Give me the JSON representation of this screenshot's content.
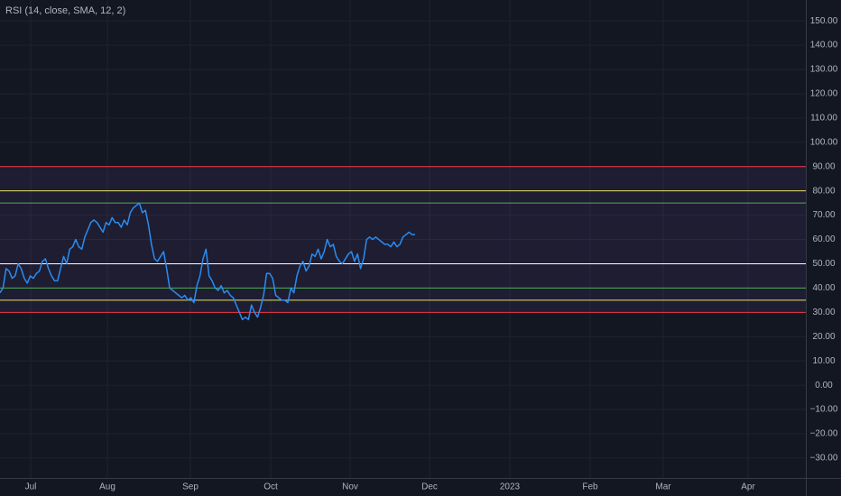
{
  "chart_data": {
    "type": "line",
    "title": "RSI (14, close, SMA, 12, 2)",
    "ylim": [
      -38.2,
      158.6
    ],
    "yticks": [
      {
        "value": 150,
        "label": "150.00"
      },
      {
        "value": 140,
        "label": "140.00"
      },
      {
        "value": 130,
        "label": "130.00"
      },
      {
        "value": 120,
        "label": "120.00"
      },
      {
        "value": 110,
        "label": "110.00"
      },
      {
        "value": 100,
        "label": "100.00"
      },
      {
        "value": 90,
        "label": "90.00"
      },
      {
        "value": 80,
        "label": "80.00"
      },
      {
        "value": 70,
        "label": "70.00"
      },
      {
        "value": 60,
        "label": "60.00"
      },
      {
        "value": 50,
        "label": "50.00"
      },
      {
        "value": 40,
        "label": "40.00"
      },
      {
        "value": 30,
        "label": "30.00"
      },
      {
        "value": 20,
        "label": "20.00"
      },
      {
        "value": 10,
        "label": "10.00"
      },
      {
        "value": 0,
        "label": "0.00"
      },
      {
        "value": -10,
        "label": "−10.00"
      },
      {
        "value": -20,
        "label": "−20.00"
      },
      {
        "value": -30,
        "label": "−30.00"
      }
    ],
    "x_labels": [
      "Jul",
      "Aug",
      "Sep",
      "Oct",
      "Nov",
      "Dec",
      "2023",
      "Feb",
      "Mar",
      "Apr"
    ],
    "grid": true,
    "levels": [
      {
        "value": 90,
        "color": "#f23645"
      },
      {
        "value": 80,
        "color": "#e8e36a"
      },
      {
        "value": 75,
        "color": "#4caf50"
      },
      {
        "value": 50,
        "color": "#ffffff"
      },
      {
        "value": 40,
        "color": "#4caf50"
      },
      {
        "value": 35,
        "color": "#e8e36a"
      },
      {
        "value": 30,
        "color": "#f23645"
      }
    ],
    "series": [
      {
        "color": "#2a8cf0",
        "values": [
          38,
          40,
          48,
          47,
          44,
          45,
          50,
          48,
          44,
          42,
          45,
          44,
          46,
          47,
          51,
          52,
          48,
          45,
          43,
          43,
          48,
          53,
          50,
          56,
          57,
          60,
          57,
          56,
          61,
          64,
          67,
          68,
          67,
          65,
          63,
          67,
          66,
          69,
          67,
          67,
          65,
          68,
          66,
          71,
          73,
          74,
          75,
          71,
          72,
          66,
          58,
          52,
          51,
          53,
          55,
          48,
          40,
          39,
          38,
          37,
          36,
          37,
          35,
          36,
          34,
          41,
          45,
          52,
          56,
          45,
          43,
          40,
          39,
          41,
          38,
          39,
          37,
          36,
          33,
          30,
          27,
          28,
          27,
          33,
          30,
          28,
          32,
          37,
          46,
          46,
          44,
          37,
          36,
          35,
          35,
          34,
          40,
          38,
          45,
          49,
          51,
          47,
          49,
          54,
          53,
          56,
          52,
          55,
          60,
          57,
          58,
          53,
          51,
          50,
          52,
          54,
          55,
          51,
          54,
          48,
          52,
          60,
          61,
          60,
          61,
          60,
          59,
          58,
          58,
          57,
          59,
          57,
          58,
          61,
          62,
          63,
          62,
          62
        ]
      }
    ]
  }
}
